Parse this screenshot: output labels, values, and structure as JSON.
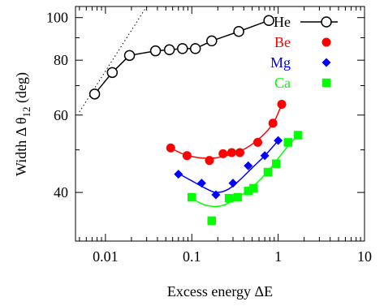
{
  "chart_data": {
    "type": "scatter",
    "xlabel": "Excess energy ΔE",
    "ylabel": "Width Δ θ",
    "ylabel_sub": "12",
    "ylabel_unit": " (deg)",
    "xscale": "log",
    "yscale": "log",
    "xlim": [
      0.0045,
      10
    ],
    "ylim": [
      31,
      106
    ],
    "xticks": [
      {
        "value": 0.01,
        "label": "0.01"
      },
      {
        "value": 0.1,
        "label": "0.1"
      },
      {
        "value": 1,
        "label": "1"
      },
      {
        "value": 10,
        "label": "10"
      }
    ],
    "yticks": [
      {
        "value": 40,
        "label": "40"
      },
      {
        "value": 60,
        "label": "60"
      },
      {
        "value": 80,
        "label": "80"
      },
      {
        "value": 100,
        "label": "100"
      }
    ],
    "legend_position": "top-right",
    "guide_line": {
      "style": "dotted",
      "x": [
        0.005,
        0.03
      ],
      "y": [
        61,
        106
      ]
    },
    "series": [
      {
        "name": "He",
        "color": "#000000",
        "marker": "open-circle",
        "line": "connected",
        "points": [
          [
            0.0075,
            67
          ],
          [
            0.012,
            75
          ],
          [
            0.019,
            82
          ],
          [
            0.038,
            84
          ],
          [
            0.055,
            84.5
          ],
          [
            0.078,
            85
          ],
          [
            0.11,
            85
          ],
          [
            0.17,
            88.5
          ],
          [
            0.35,
            93
          ],
          [
            0.78,
            98.5
          ]
        ]
      },
      {
        "name": "Be",
        "color": "#ff0000",
        "marker": "circle",
        "line": "smooth-fit",
        "points": [
          [
            0.057,
            50.5
          ],
          [
            0.088,
            48.5
          ],
          [
            0.16,
            47.3
          ],
          [
            0.23,
            49
          ],
          [
            0.29,
            49.3
          ],
          [
            0.36,
            49.3
          ],
          [
            0.58,
            52
          ],
          [
            0.87,
            57.5
          ],
          [
            1.1,
            63.5
          ]
        ],
        "fit": [
          [
            0.057,
            50.5
          ],
          [
            0.08,
            48.9
          ],
          [
            0.12,
            48
          ],
          [
            0.18,
            47.9
          ],
          [
            0.25,
            48.5
          ],
          [
            0.35,
            49.5
          ],
          [
            0.5,
            51.5
          ],
          [
            0.7,
            54.5
          ],
          [
            0.9,
            58
          ],
          [
            1.1,
            63.5
          ]
        ]
      },
      {
        "name": "Mg",
        "color": "#0000ff",
        "marker": "diamond",
        "line": "smooth-fit",
        "points": [
          [
            0.07,
            44
          ],
          [
            0.13,
            42
          ],
          [
            0.19,
            39.5
          ],
          [
            0.3,
            42
          ],
          [
            0.45,
            46
          ],
          [
            0.7,
            48.5
          ],
          [
            1.0,
            52.5
          ]
        ],
        "fit": [
          [
            0.07,
            44.2
          ],
          [
            0.1,
            42.5
          ],
          [
            0.14,
            41
          ],
          [
            0.19,
            40
          ],
          [
            0.26,
            40.6
          ],
          [
            0.35,
            42.5
          ],
          [
            0.5,
            45.5
          ],
          [
            0.7,
            48.5
          ],
          [
            1.0,
            52.5
          ]
        ]
      },
      {
        "name": "Ca",
        "color": "#00ff00",
        "marker": "square",
        "line": "smooth-fit",
        "points": [
          [
            0.1,
            39
          ],
          [
            0.17,
            34.5
          ],
          [
            0.27,
            38.8
          ],
          [
            0.34,
            39
          ],
          [
            0.45,
            40.3
          ],
          [
            0.52,
            40.9
          ],
          [
            0.76,
            44.5
          ],
          [
            0.95,
            46.5
          ],
          [
            1.3,
            52
          ],
          [
            1.7,
            54
          ]
        ],
        "fit": [
          [
            0.1,
            38.8
          ],
          [
            0.13,
            37.7
          ],
          [
            0.17,
            37.2
          ],
          [
            0.22,
            37.3
          ],
          [
            0.3,
            38.3
          ],
          [
            0.4,
            39.8
          ],
          [
            0.55,
            41.8
          ],
          [
            0.75,
            44.5
          ],
          [
            1.0,
            47.8
          ],
          [
            1.3,
            51
          ],
          [
            1.7,
            54
          ]
        ]
      }
    ]
  }
}
